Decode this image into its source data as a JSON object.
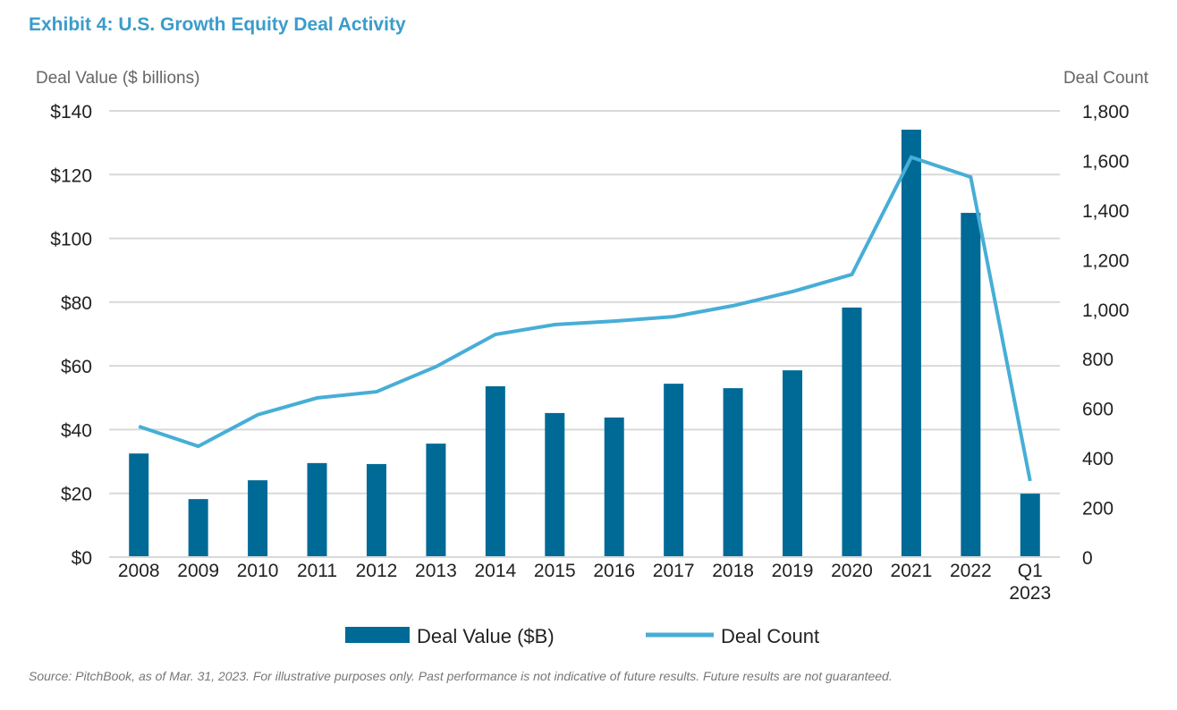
{
  "title": "Exhibit 4: U.S. Growth Equity Deal Activity",
  "source": "Source: PitchBook, as of Mar. 31, 2023. For illustrative purposes only. Past performance is not indicative of future results. Future results are not guaranteed.",
  "colors": {
    "bar": "#006a96",
    "line": "#47aed6",
    "grid": "#d9d9d9"
  },
  "chart_data": {
    "type": "bar+line",
    "categories": [
      "2008",
      "2009",
      "2010",
      "2011",
      "2012",
      "2013",
      "2014",
      "2015",
      "2016",
      "2017",
      "2018",
      "2019",
      "2020",
      "2021",
      "2022",
      "Q1\n2023"
    ],
    "ylabel_left": "Deal Value ($ billions)",
    "ylabel_right": "Deal Count",
    "ylim_left": [
      0,
      140
    ],
    "ylim_right": [
      0,
      1800
    ],
    "yticks_left": [
      "$0",
      "$20",
      "$40",
      "$60",
      "$80",
      "$100",
      "$120",
      "$140"
    ],
    "yticks_right": [
      "0",
      "200",
      "400",
      "600",
      "800",
      "1,000",
      "1,200",
      "1,400",
      "1,600",
      "1,800"
    ],
    "grid": true,
    "legend_position": "bottom",
    "series": [
      {
        "name": "Deal Value ($B)",
        "type": "bar",
        "axis": "left",
        "values": [
          32.5,
          18.2,
          24.1,
          29.5,
          29.2,
          35.6,
          53.6,
          45.2,
          43.8,
          54.4,
          53.0,
          58.6,
          78.3,
          134.1,
          108.0,
          19.9
        ]
      },
      {
        "name": "Deal Count",
        "type": "line",
        "axis": "right",
        "values": [
          527,
          447,
          574,
          642,
          667,
          768,
          898,
          938,
          952,
          970,
          1014,
          1071,
          1140,
          1613,
          1533,
          307
        ]
      }
    ]
  }
}
